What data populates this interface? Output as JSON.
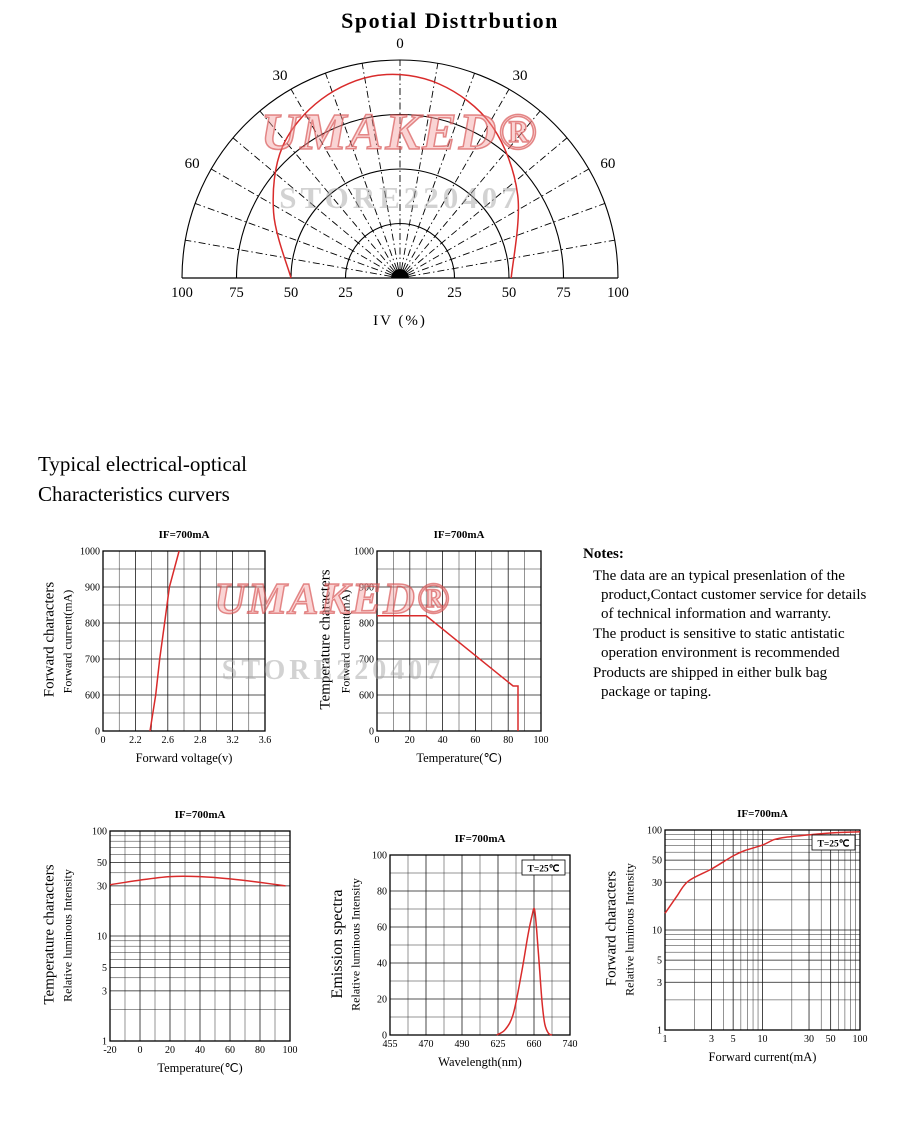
{
  "page": {
    "title": "Spotial Disttrbution",
    "section_heading": {
      "line1": "Typical electrical-optical",
      "line2": "Characteristics curvers"
    }
  },
  "watermark": {
    "brand": "UMAKED®",
    "store": "STORE220407"
  },
  "notes": {
    "heading": "Notes:",
    "paragraphs": [
      "The data are an typical presenlation of the product,Contact customer service for details of technical information and warranty.",
      "The product is sensitive to static antistatic operation environment is recommended",
      "Products are shipped in either bulk bag package or taping."
    ]
  },
  "chart_data": [
    {
      "type": "polar",
      "name": "spatial-distribution",
      "title": "Spotial Disttrbution",
      "angle_labels": [
        "0",
        "30",
        "60"
      ],
      "angle_grid_step_deg": 10,
      "radial_ticks": [
        25,
        50,
        75,
        100
      ],
      "baseline_labels": [
        "100",
        "75",
        "50",
        "25",
        "0",
        "25",
        "50",
        "75",
        "100"
      ],
      "axis_title": "IV (%)",
      "curve_points_xy_percent": [
        [
          -50,
          0
        ],
        [
          -58,
          30
        ],
        [
          -54,
          60
        ],
        [
          -36,
          82
        ],
        [
          -10,
          93
        ],
        [
          18,
          89
        ],
        [
          42,
          70
        ],
        [
          54,
          38
        ],
        [
          51,
          0
        ]
      ]
    },
    {
      "type": "line",
      "name": "forward-current-vs-forward-voltage",
      "title": "IF=700mA",
      "x_title": "Forward voltage(v)",
      "y_title_outer": "Forward characters",
      "y_title_inner": "Forward current(mA)",
      "x_ticks": [
        {
          "label": "0",
          "v": 0,
          "p": 0
        },
        {
          "label": "2.2",
          "v": 2.2,
          "p": 0.2
        },
        {
          "label": "2.6",
          "v": 2.6,
          "p": 0.4
        },
        {
          "label": "2.8",
          "v": 2.8,
          "p": 0.6
        },
        {
          "label": "3.2",
          "v": 3.2,
          "p": 0.8
        },
        {
          "label": "3.6",
          "v": 3.6,
          "p": 1
        }
      ],
      "y_ticks": [
        {
          "label": "0",
          "v": 0,
          "p": 0
        },
        {
          "label": "600",
          "v": 600,
          "p": 0.2
        },
        {
          "label": "700",
          "v": 700,
          "p": 0.4
        },
        {
          "label": "800",
          "v": 800,
          "p": 0.6
        },
        {
          "label": "900",
          "v": 900,
          "p": 0.8
        },
        {
          "label": "1000",
          "v": 1000,
          "p": 1
        }
      ],
      "x_minor_p": [
        0.1,
        0.3,
        0.5,
        0.7,
        0.9
      ],
      "y_minor_p": [
        0.1,
        0.3,
        0.5,
        0.7,
        0.9
      ],
      "series": [
        [
          2.38,
          0
        ],
        [
          2.45,
          600
        ],
        [
          2.5,
          700
        ],
        [
          2.56,
          800
        ],
        [
          2.61,
          900
        ],
        [
          2.67,
          1000
        ]
      ],
      "smooth": false,
      "annotation": null
    },
    {
      "type": "line",
      "name": "forward-current-vs-temperature",
      "title": "IF=700mA",
      "x_title": "Temperature(℃)",
      "y_title_outer": "Temperature characters",
      "y_title_inner": "Forward current(mA)",
      "x_ticks": [
        {
          "label": "0",
          "v": 0,
          "p": 0
        },
        {
          "label": "20",
          "v": 20,
          "p": 0.2
        },
        {
          "label": "40",
          "v": 40,
          "p": 0.4
        },
        {
          "label": "60",
          "v": 60,
          "p": 0.6
        },
        {
          "label": "80",
          "v": 80,
          "p": 0.8
        },
        {
          "label": "100",
          "v": 100,
          "p": 1
        }
      ],
      "y_ticks": [
        {
          "label": "0",
          "v": 0,
          "p": 0
        },
        {
          "label": "600",
          "v": 600,
          "p": 0.2
        },
        {
          "label": "700",
          "v": 700,
          "p": 0.4
        },
        {
          "label": "800",
          "v": 800,
          "p": 0.6
        },
        {
          "label": "900",
          "v": 900,
          "p": 0.8
        },
        {
          "label": "1000",
          "v": 1000,
          "p": 1
        }
      ],
      "x_minor_p": [
        0.1,
        0.3,
        0.5,
        0.7,
        0.9
      ],
      "y_minor_p": [
        0.1,
        0.3,
        0.5,
        0.7,
        0.9
      ],
      "series": [
        [
          0,
          820
        ],
        [
          30,
          820
        ],
        [
          83,
          625
        ],
        [
          86,
          625
        ],
        [
          86,
          0
        ]
      ],
      "smooth": false,
      "annotation": null
    },
    {
      "type": "line",
      "name": "relative-intensity-vs-temperature",
      "title": "IF=700mA",
      "x_title": "Temperature(℃)",
      "y_title_outer": "Temperature characters",
      "y_title_inner": "Relative luminous Intensity",
      "x_ticks": [
        {
          "label": "-20",
          "v": -20,
          "p": 0
        },
        {
          "label": "0",
          "v": 0,
          "p": 0.1667
        },
        {
          "label": "20",
          "v": 20,
          "p": 0.3333
        },
        {
          "label": "40",
          "v": 40,
          "p": 0.5
        },
        {
          "label": "60",
          "v": 60,
          "p": 0.6667
        },
        {
          "label": "80",
          "v": 80,
          "p": 0.8333
        },
        {
          "label": "100",
          "v": 100,
          "p": 1
        }
      ],
      "y_ticks": [
        {
          "label": "1",
          "v": 1,
          "p": 0
        },
        {
          "label": "3",
          "v": 3,
          "p": 0.2386
        },
        {
          "label": "5",
          "v": 5,
          "p": 0.3495
        },
        {
          "label": "10",
          "v": 10,
          "p": 0.5
        },
        {
          "label": "30",
          "v": 30,
          "p": 0.7386
        },
        {
          "label": "50",
          "v": 50,
          "p": 0.8495
        },
        {
          "label": "100",
          "v": 100,
          "p": 1
        }
      ],
      "x_minor_p": [
        0.0833,
        0.25,
        0.4167,
        0.5833,
        0.75,
        0.9167
      ],
      "y_minor_p": [
        0.1505,
        0.301,
        0.3891,
        0.4226,
        0.4515,
        0.4771,
        0.6505,
        0.801,
        0.8891,
        0.9226,
        0.9515,
        0.9771
      ],
      "series": [
        [
          -20,
          31
        ],
        [
          0,
          35
        ],
        [
          20,
          38
        ],
        [
          40,
          38
        ],
        [
          60,
          36
        ],
        [
          80,
          33
        ],
        [
          97,
          30
        ]
      ],
      "smooth": true,
      "annotation": null
    },
    {
      "type": "line",
      "name": "emission-spectra",
      "title": "IF=700mA",
      "x_title": "Wavelength(nm)",
      "y_title_outer": "Emission spectra",
      "y_title_inner": "Relative luminous Intensity",
      "x_ticks": [
        {
          "label": "455",
          "v": 455,
          "p": 0
        },
        {
          "label": "470",
          "v": 470,
          "p": 0.2
        },
        {
          "label": "490",
          "v": 490,
          "p": 0.4
        },
        {
          "label": "625",
          "v": 625,
          "p": 0.6
        },
        {
          "label": "660",
          "v": 660,
          "p": 0.8
        },
        {
          "label": "740",
          "v": 740,
          "p": 1
        }
      ],
      "y_ticks": [
        {
          "label": "0",
          "v": 0,
          "p": 0
        },
        {
          "label": "20",
          "v": 20,
          "p": 0.2
        },
        {
          "label": "40",
          "v": 40,
          "p": 0.4
        },
        {
          "label": "60",
          "v": 60,
          "p": 0.6
        },
        {
          "label": "80",
          "v": 80,
          "p": 0.8
        },
        {
          "label": "100",
          "v": 100,
          "p": 1
        }
      ],
      "x_minor_p": [
        0.1,
        0.3,
        0.5,
        0.7,
        0.9
      ],
      "y_minor_p": [
        0.1,
        0.3,
        0.5,
        0.7,
        0.9
      ],
      "series": [
        [
          620,
          0
        ],
        [
          632,
          3
        ],
        [
          640,
          12
        ],
        [
          648,
          35
        ],
        [
          654,
          55
        ],
        [
          658,
          66
        ],
        [
          661,
          70
        ],
        [
          666,
          58
        ],
        [
          672,
          38
        ],
        [
          678,
          18
        ],
        [
          684,
          6
        ],
        [
          692,
          1
        ],
        [
          700,
          0
        ]
      ],
      "smooth": true,
      "annotation": "T=25℃"
    },
    {
      "type": "line",
      "name": "relative-intensity-vs-forward-current",
      "title": "IF=700mA",
      "x_title": "Forward current(mA)",
      "y_title_outer": "Forward characters",
      "y_title_inner": "Relative luminous Intensity",
      "x_ticks": [
        {
          "label": "1",
          "v": 1,
          "p": 0
        },
        {
          "label": "3",
          "v": 3,
          "p": 0.2386
        },
        {
          "label": "5",
          "v": 5,
          "p": 0.3495
        },
        {
          "label": "10",
          "v": 10,
          "p": 0.5
        },
        {
          "label": "30",
          "v": 30,
          "p": 0.7386
        },
        {
          "label": "50",
          "v": 50,
          "p": 0.8495
        },
        {
          "label": "100",
          "v": 100,
          "p": 1
        }
      ],
      "y_ticks": [
        {
          "label": "1",
          "v": 1,
          "p": 0
        },
        {
          "label": "3",
          "v": 3,
          "p": 0.2386
        },
        {
          "label": "5",
          "v": 5,
          "p": 0.3495
        },
        {
          "label": "10",
          "v": 10,
          "p": 0.5
        },
        {
          "label": "30",
          "v": 30,
          "p": 0.7386
        },
        {
          "label": "50",
          "v": 50,
          "p": 0.8495
        },
        {
          "label": "100",
          "v": 100,
          "p": 1
        }
      ],
      "x_minor_p": [
        0.1505,
        0.301,
        0.3891,
        0.4226,
        0.4515,
        0.4771,
        0.6505,
        0.801,
        0.8891,
        0.9226,
        0.9515,
        0.9771
      ],
      "y_minor_p": [
        0.1505,
        0.301,
        0.3891,
        0.4226,
        0.4515,
        0.4771,
        0.6505,
        0.801,
        0.8891,
        0.9226,
        0.9515,
        0.9771
      ],
      "series": [
        [
          1,
          17
        ],
        [
          1.5,
          24
        ],
        [
          2,
          31
        ],
        [
          3,
          42
        ],
        [
          5,
          57
        ],
        [
          7,
          66
        ],
        [
          10,
          75
        ],
        [
          15,
          84
        ],
        [
          20,
          88
        ],
        [
          30,
          92
        ],
        [
          50,
          95
        ],
        [
          100,
          97
        ]
      ],
      "smooth": true,
      "annotation": "T=25℃"
    }
  ]
}
